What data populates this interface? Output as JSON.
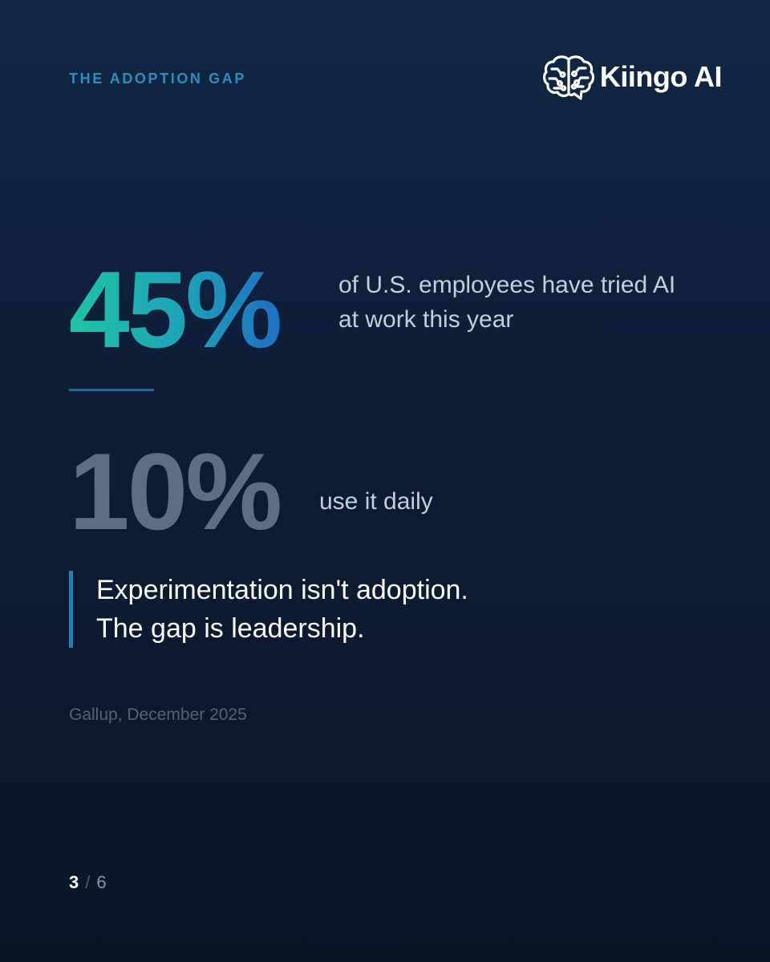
{
  "kicker": "THE ADOPTION GAP",
  "brand": {
    "name": "Kiingo AI",
    "icon": "brain-circuit-icon"
  },
  "stats": {
    "primary": {
      "value": "45%",
      "description": "of U.S. employees have tried AI at work this year"
    },
    "secondary": {
      "value": "10%",
      "description": "use it daily"
    }
  },
  "quote": {
    "line1": "Experimentation isn't adoption.",
    "line2": "The gap is leadership."
  },
  "source": "Gallup, December 2025",
  "pagination": {
    "current": "3",
    "separator": "/",
    "total": "6"
  },
  "colors": {
    "background_top": "#112745",
    "background_bottom": "#0a1528",
    "accent_teal": "#1fc4a8",
    "accent_blue": "#1f6fc2",
    "kicker": "#2a8fc0",
    "muted_stat": "#5c6d85"
  }
}
